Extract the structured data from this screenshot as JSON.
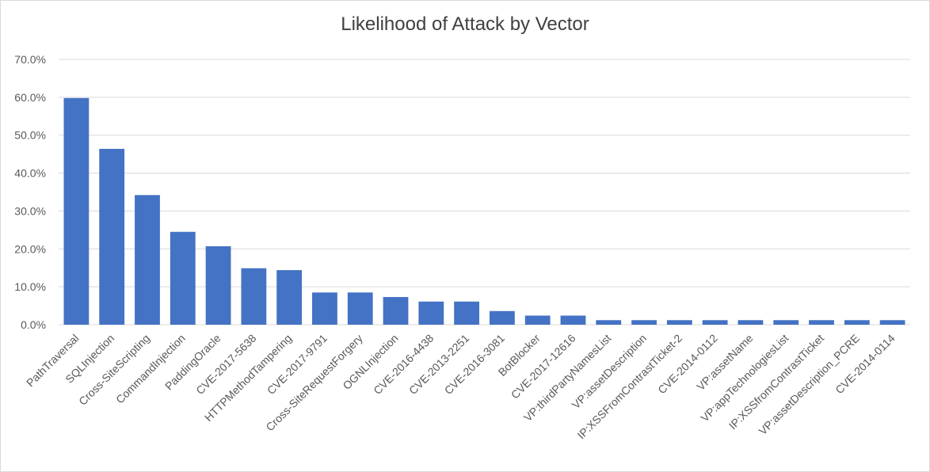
{
  "chart_data": {
    "type": "bar",
    "title": "Likelihood of Attack by Vector",
    "xlabel": "",
    "ylabel": "",
    "ylim": [
      0,
      70
    ],
    "yticks": [
      "0.0%",
      "10.0%",
      "20.0%",
      "30.0%",
      "40.0%",
      "50.0%",
      "60.0%",
      "70.0%"
    ],
    "grid": true,
    "legend": "none",
    "bar_color": "#4472C4",
    "categories": [
      "PathTraversal",
      "SQLInjection",
      "Cross-SiteScripting",
      "CommandInjection",
      "PaddingOracle",
      "CVE-2017-5638",
      "HTTPMethodTampering",
      "CVE-2017-9791",
      "Cross-SiteRequestForgery",
      "OGNLInjection",
      "CVE-2016-4438",
      "CVE-2013-2251",
      "CVE-2016-3081",
      "BotBlocker",
      "CVE-2017-12616",
      "VP:thirdPartyNamesList",
      "VP:assetDescription",
      "IP:XSSFromContrastTicket-2",
      "CVE-2014-0112",
      "VP:assetName",
      "VP:appTechnologiesList",
      "IP:XSSfromContrastTicket",
      "VP:assetDescription_PCRE",
      "CVE-2014-0114"
    ],
    "values": [
      59.8,
      46.4,
      34.2,
      24.5,
      20.7,
      14.9,
      14.4,
      8.5,
      8.5,
      7.3,
      6.1,
      6.1,
      3.6,
      2.4,
      2.4,
      1.2,
      1.2,
      1.2,
      1.2,
      1.2,
      1.2,
      1.2,
      1.2,
      1.2
    ]
  }
}
